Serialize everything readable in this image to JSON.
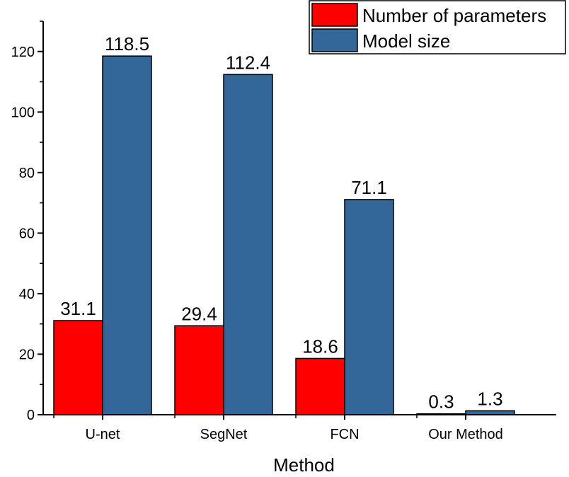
{
  "chart_data": {
    "type": "bar",
    "categories": [
      "U-net",
      "SegNet",
      "FCN",
      "Our Method"
    ],
    "series": [
      {
        "name": "Number of parameters",
        "values": [
          31.1,
          29.4,
          18.6,
          0.3
        ],
        "labels": [
          "31.1",
          "29.4",
          "18.6",
          "0.3"
        ],
        "color": "#ff0000"
      },
      {
        "name": "Model size",
        "values": [
          118.5,
          112.4,
          71.1,
          1.3
        ],
        "labels": [
          "118.5",
          "112.4",
          "71.1",
          "1.3"
        ],
        "color": "#336699"
      }
    ],
    "xlabel": "Method",
    "ylabel": "",
    "ylim": [
      0,
      130
    ],
    "yticks": [
      0,
      20,
      40,
      60,
      80,
      100,
      120
    ],
    "ytick_labels": [
      "0",
      "20",
      "40",
      "60",
      "80",
      "100",
      "120"
    ],
    "grid": false,
    "legend_position": "top-right"
  }
}
